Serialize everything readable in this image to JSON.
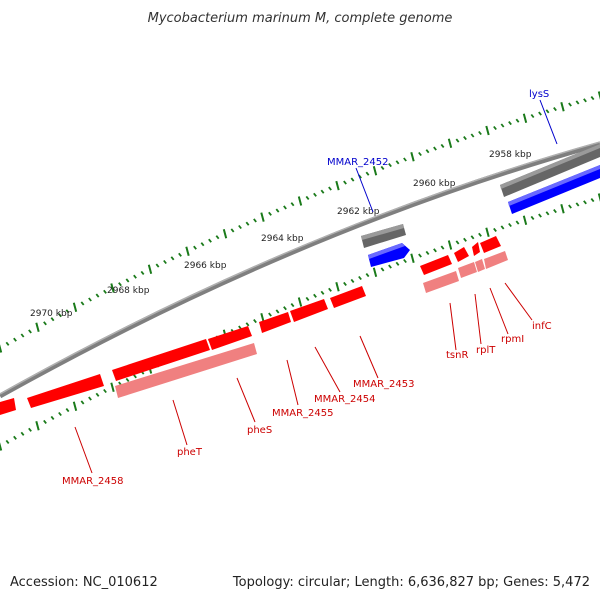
{
  "title": "Mycobacterium marinum M, complete genome",
  "footer": {
    "accession": "Accession: NC_010612",
    "topology": "Topology: circular; Length: 6,636,827 bp; Genes: 5,472"
  },
  "colors": {
    "backbone": "#7f7f7f",
    "gene_forward": "#ff0000",
    "gene_forward_pale": "#f08080",
    "gene_blue": "#0000ff",
    "gene_gray": "#666666",
    "tick": "#1a7a1a",
    "label_red": "#cc0000",
    "label_blue": "#0000cc"
  },
  "kbp_labels": [
    "2970 kbp",
    "2968 kbp",
    "2966 kbp",
    "2964 kbp",
    "2962 kbp",
    "2960 kbp",
    "2958 kbp"
  ],
  "genes": [
    {
      "name": "lysS",
      "color": "blue"
    },
    {
      "name": "MMAR_2452",
      "color": "blue"
    },
    {
      "name": "infC",
      "color": "red"
    },
    {
      "name": "rpmI",
      "color": "red"
    },
    {
      "name": "rplT",
      "color": "red"
    },
    {
      "name": "tsnR",
      "color": "red"
    },
    {
      "name": "MMAR_2453",
      "color": "red"
    },
    {
      "name": "MMAR_2454",
      "color": "red"
    },
    {
      "name": "MMAR_2455",
      "color": "red"
    },
    {
      "name": "pheS",
      "color": "red"
    },
    {
      "name": "pheT",
      "color": "red"
    },
    {
      "name": "MMAR_2458",
      "color": "red"
    }
  ]
}
